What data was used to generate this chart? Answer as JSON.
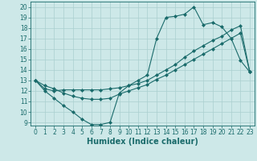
{
  "xlabel": "Humidex (Indice chaleur)",
  "bg_color": "#cde8e8",
  "grid_color": "#aacfcf",
  "line_color": "#1a6b6b",
  "marker": "D",
  "marker_size": 2.0,
  "linewidth": 0.8,
  "xlim": [
    -0.5,
    23.5
  ],
  "ylim": [
    8.7,
    20.5
  ],
  "xticks": [
    0,
    1,
    2,
    3,
    4,
    5,
    6,
    7,
    8,
    9,
    10,
    11,
    12,
    13,
    14,
    15,
    16,
    17,
    18,
    19,
    20,
    21,
    22,
    23
  ],
  "yticks": [
    9,
    10,
    11,
    12,
    13,
    14,
    15,
    16,
    17,
    18,
    19,
    20
  ],
  "line1_x": [
    0,
    1,
    2,
    3,
    4,
    5,
    6,
    7,
    8,
    9,
    10,
    11,
    12,
    13,
    14,
    15,
    16,
    17,
    18,
    19,
    20,
    21,
    22,
    23
  ],
  "line1_y": [
    13,
    12,
    11.3,
    10.6,
    10.0,
    9.3,
    8.8,
    8.8,
    9.0,
    11.8,
    12.5,
    13.0,
    13.5,
    17.0,
    19.0,
    19.1,
    19.3,
    20.0,
    18.3,
    18.5,
    18.1,
    17.0,
    14.9,
    13.8
  ],
  "line2_x": [
    0,
    1,
    2,
    3,
    4,
    5,
    6,
    7,
    8,
    9,
    10,
    11,
    12,
    13,
    14,
    15,
    16,
    17,
    18,
    19,
    20,
    21,
    22,
    23
  ],
  "line2_y": [
    13,
    12.2,
    12.0,
    12.1,
    12.1,
    12.1,
    12.1,
    12.1,
    12.2,
    12.3,
    12.5,
    12.7,
    13.0,
    13.5,
    14.0,
    14.5,
    15.2,
    15.8,
    16.3,
    16.8,
    17.2,
    17.8,
    18.2,
    13.8
  ],
  "line3_x": [
    0,
    1,
    2,
    3,
    4,
    5,
    6,
    7,
    8,
    9,
    10,
    11,
    12,
    13,
    14,
    15,
    16,
    17,
    18,
    19,
    20,
    21,
    22,
    23
  ],
  "line3_y": [
    13,
    12.5,
    12.2,
    11.8,
    11.5,
    11.3,
    11.2,
    11.2,
    11.3,
    11.7,
    12.0,
    12.3,
    12.6,
    13.1,
    13.5,
    14.0,
    14.5,
    15.0,
    15.5,
    16.0,
    16.5,
    17.0,
    17.5,
    13.8
  ],
  "tick_fontsize": 5.5,
  "label_fontsize": 7
}
